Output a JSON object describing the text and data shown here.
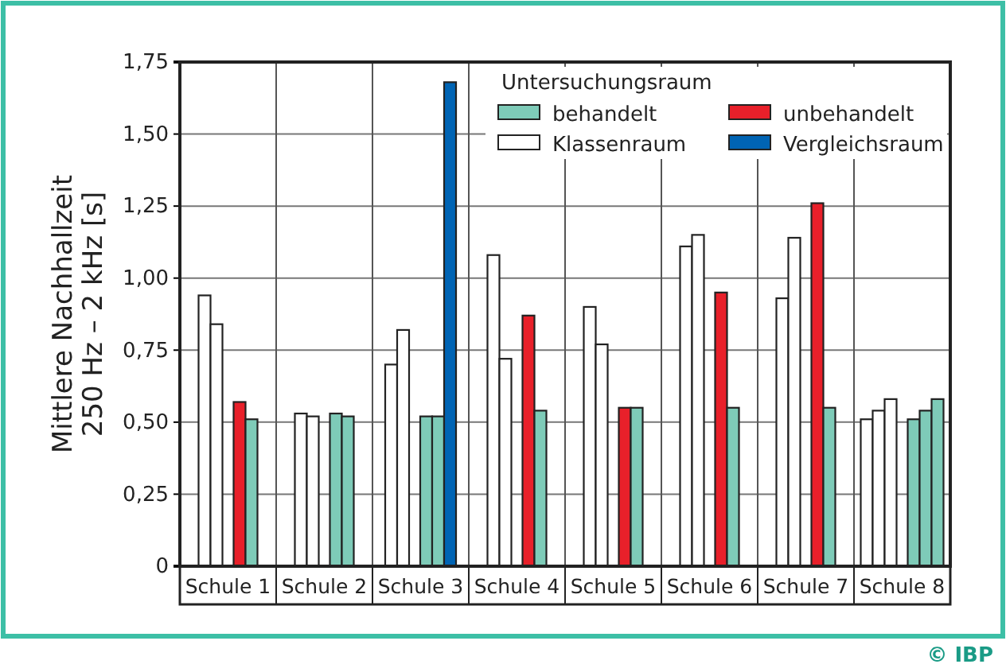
{
  "chart_data": {
    "type": "bar",
    "ylabel": "Mittlere Nachhallzeit\n250 Hz – 2 kHz [s]",
    "legend_title": "Untersuchungsraum",
    "legend": "top right",
    "grid": true,
    "categories": [
      "Schule 1",
      "Schule 2",
      "Schule 3",
      "Schule 4",
      "Schule 5",
      "Schule 6",
      "Schule 7",
      "Schule 8"
    ],
    "ylim": [
      0,
      1.75
    ],
    "yticks": [
      0,
      {
        "value": 0.25,
        "label": "0,25"
      },
      {
        "value": 0.5,
        "label": "0,50"
      },
      {
        "value": 0.75,
        "label": "0,75"
      },
      {
        "value": 1,
        "label": "1,00"
      },
      {
        "value": 1.25,
        "label": "1,25"
      },
      {
        "value": 1.5,
        "label": "1,50"
      },
      {
        "value": 1.75,
        "label": "1,75"
      }
    ],
    "series": [
      {
        "name": "Klassenraum",
        "color": "#ffffff",
        "values": [
          0.94,
          0.53,
          0.7,
          1.08,
          0.9,
          1.11,
          0.93,
          0.51
        ]
      },
      {
        "color": "#ffffff",
        "values": [
          0.84,
          0.52,
          0.82,
          0.72,
          0.77,
          1.15,
          1.14,
          0.54
        ]
      },
      {
        "color": "#ffffff",
        "values": [
          null,
          null,
          null,
          null,
          null,
          null,
          null,
          0.58
        ]
      },
      {
        "name": "unbehandelt",
        "color": "#e8202a",
        "values": [
          0.57,
          null,
          null,
          0.87,
          0.55,
          0.95,
          1.26,
          null
        ]
      },
      {
        "name": "behandelt",
        "color": "#7ecbb8",
        "values": [
          0.51,
          0.53,
          0.52,
          0.54,
          0.55,
          0.55,
          0.55,
          0.51
        ]
      },
      {
        "color": "#7ecbb8",
        "values": [
          null,
          0.52,
          0.52,
          null,
          null,
          null,
          null,
          0.54
        ]
      },
      {
        "color": "#7ecbb8",
        "values": [
          null,
          null,
          null,
          null,
          null,
          null,
          null,
          0.58
        ]
      },
      {
        "name": "Vergleichsraum",
        "color": "#0064b4",
        "values": [
          null,
          null,
          1.68,
          null,
          null,
          null,
          null,
          null
        ]
      }
    ],
    "annotations": [
      "© IBP"
    ]
  }
}
